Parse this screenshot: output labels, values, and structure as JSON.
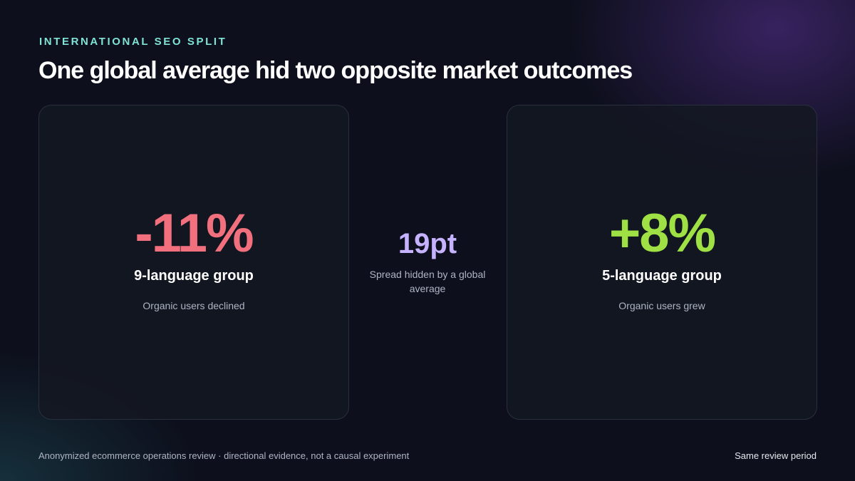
{
  "header": {
    "eyebrow": "INTERNATIONAL SEO SPLIT",
    "title": "One global average hid two opposite market outcomes"
  },
  "cards": [
    {
      "value": "-11%",
      "label": "9-language group",
      "note": "Organic users declined"
    },
    {
      "value": "+8%",
      "label": "5-language group",
      "note": "Organic users grew"
    }
  ],
  "spread": {
    "value": "19pt",
    "note": "Spread hidden by a global average"
  },
  "footer": {
    "source": "Anonymized ecommerce operations review · directional evidence, not a causal experiment",
    "period": "Same review period"
  }
}
